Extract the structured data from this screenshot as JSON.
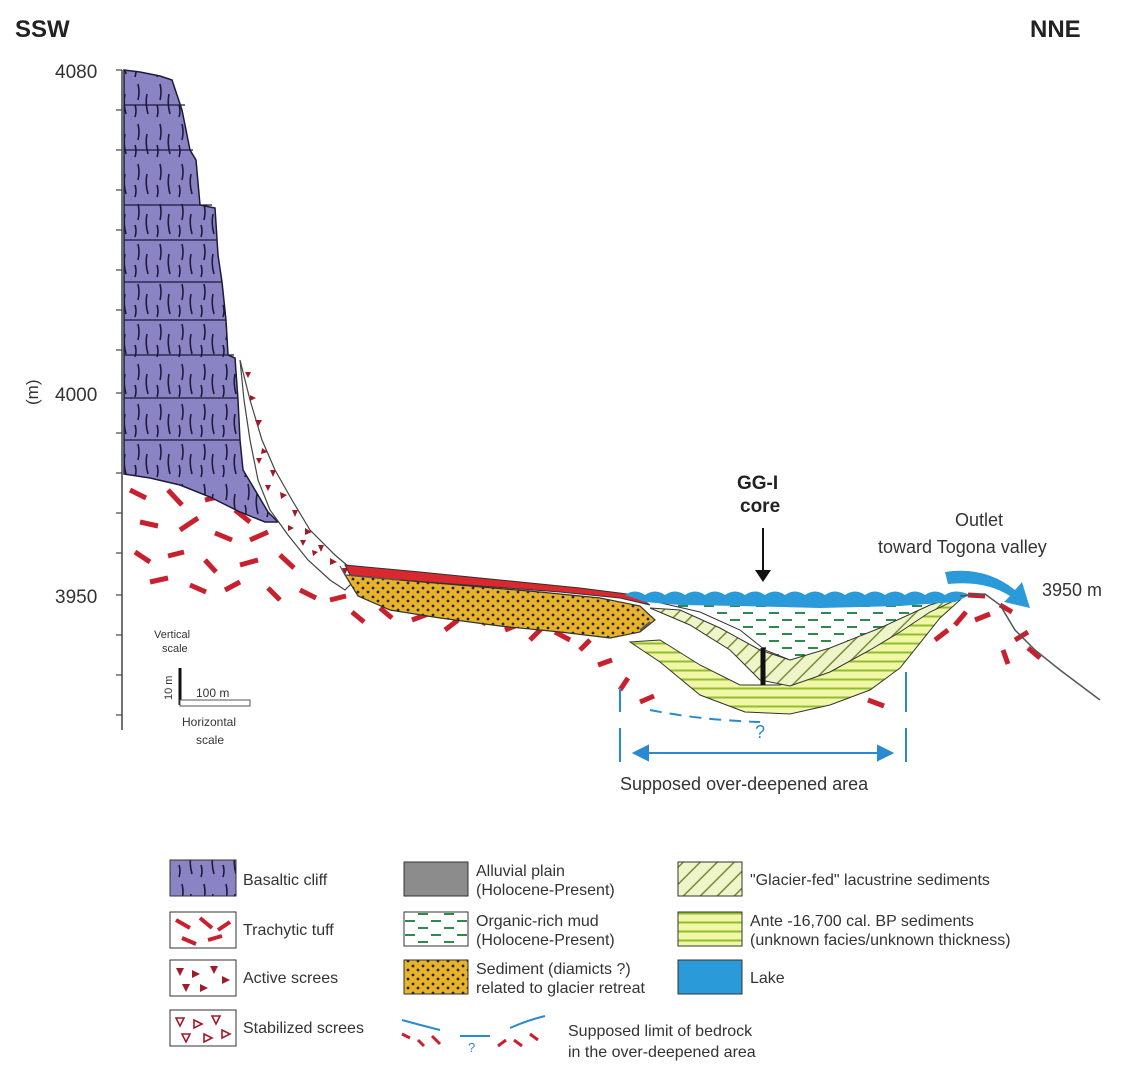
{
  "directions": {
    "left": "SSW",
    "right": "NNE"
  },
  "y_axis": {
    "unit": "(m)",
    "ticks": [
      "4080",
      "4000",
      "3950"
    ]
  },
  "scale_bar": {
    "vertical_title_1": "Vertical",
    "vertical_title_2": "scale",
    "vertical_value": "10 m",
    "horizontal_value": "100 m",
    "horizontal_title_1": "Horizontal",
    "horizontal_title_2": "scale"
  },
  "core": {
    "line1": "GG-I",
    "line2": "core"
  },
  "outlet": {
    "line1": "Outlet",
    "line2": "toward Togona valley",
    "elevation": "3950 m"
  },
  "question_mark": "?",
  "overdeepened_label": "Supposed over-deepened area",
  "legend": {
    "basaltic_cliff": "Basaltic cliff",
    "trachytic_tuff": "Trachytic tuff",
    "active_screes": "Active screes",
    "stabilized_screes": "Stabilized screes",
    "alluvial_plain_1": "Alluvial plain",
    "alluvial_plain_2": "(Holocene-Present)",
    "organic_mud_1": "Organic-rich mud",
    "organic_mud_2": "(Holocene-Present)",
    "sediment_1": "Sediment (diamicts ?)",
    "sediment_2": "related to glacier retreat",
    "glacier_fed": "\"Glacier-fed\" lacustrine sediments",
    "ante_1": "Ante -16,700 cal. BP sediments",
    "ante_2": "(unknown facies/unknown thickness)",
    "lake": "Lake",
    "bedrock_1": "Supposed limit of bedrock",
    "bedrock_2": "in the over-deepened area",
    "bedrock_q": "?"
  },
  "colors": {
    "basalt": "#8a83c4",
    "tuff": "#c8202e",
    "alluvial": "#8c8c8c",
    "sediment": "#e8b32a",
    "glacier_fed": "#eef5c8",
    "ante": "#f2f7a8",
    "lake": "#2a9ad8",
    "organic": "#2e8a4a"
  }
}
